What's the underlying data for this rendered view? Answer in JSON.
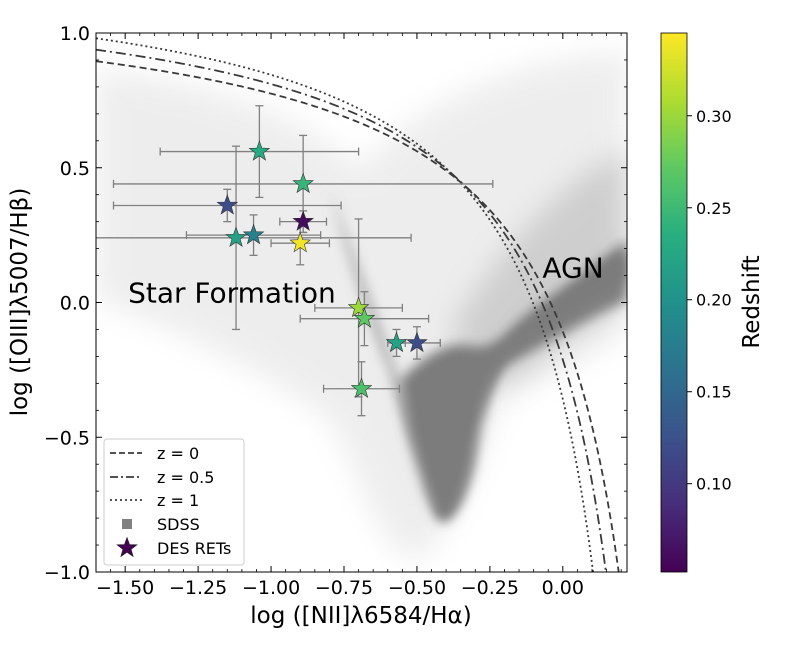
{
  "chart_data": {
    "type": "scatter",
    "xlabel": "log ([NII]λ6584/Hα)",
    "ylabel": "log ([OIII]λ5007/Hβ)",
    "xlim": [
      -1.6,
      0.22
    ],
    "ylim": [
      -1.0,
      1.0
    ],
    "x_ticks": [
      -1.5,
      -1.25,
      -1.0,
      -0.75,
      -0.5,
      -0.25,
      0.0
    ],
    "x_tick_labels": [
      "−1.50",
      "−1.25",
      "−1.00",
      "−0.75",
      "−0.50",
      "−0.25",
      "0.00"
    ],
    "y_ticks": [
      -1.0,
      -0.5,
      0.0,
      0.5,
      1.0
    ],
    "y_tick_labels": [
      "−1.0",
      "−0.5",
      "0.0",
      "0.5",
      "1.0"
    ],
    "annotations": [
      {
        "text": "Star Formation",
        "x": -1.49,
        "y": 0.0
      },
      {
        "text": "AGN",
        "x": -0.07,
        "y": 0.13
      }
    ],
    "curves": [
      {
        "name": "$z = 0$",
        "style": "dashed",
        "color": "#3a3a3a",
        "asymptote": 0.47,
        "coef": 0.61,
        "offset": 1.19
      },
      {
        "name": "$z = 0.5$",
        "style": "dashdot",
        "color": "#3a3a3a",
        "asymptote": 0.42,
        "coef": 0.61,
        "offset": 1.24
      },
      {
        "name": "$z = 1$",
        "style": "dotted",
        "color": "#3a3a3a",
        "asymptote": 0.37,
        "coef": 0.61,
        "offset": 1.29
      }
    ],
    "series": [
      {
        "name": "SDSS",
        "marker": "square",
        "color": "#808080"
      },
      {
        "name": "DES RETs",
        "marker": "star",
        "color": "#440154"
      }
    ],
    "points": [
      {
        "x": -1.04,
        "y": 0.56,
        "xerr": 0.34,
        "yerr": 0.17,
        "z": 0.23
      },
      {
        "x": -0.89,
        "y": 0.44,
        "xerr": 0.65,
        "yerr": 0.18,
        "z": 0.245
      },
      {
        "x": -1.15,
        "y": 0.36,
        "xerr": 0.39,
        "yerr": 0.06,
        "z": 0.12
      },
      {
        "x": -0.89,
        "y": 0.3,
        "xerr": 0.08,
        "yerr": 0.04,
        "z": 0.06
      },
      {
        "x": -1.12,
        "y": 0.24,
        "xerr": 0.6,
        "yerr": 0.34,
        "z": 0.22
      },
      {
        "x": -1.06,
        "y": 0.25,
        "xerr": 0.23,
        "yerr": 0.075,
        "z": 0.18
      },
      {
        "x": -0.9,
        "y": 0.22,
        "xerr": 0.1,
        "yerr": 0.08,
        "z": 0.34
      },
      {
        "x": -0.7,
        "y": -0.02,
        "xerr": 0.15,
        "yerr": 0.33,
        "z": 0.3
      },
      {
        "x": -0.68,
        "y": -0.06,
        "xerr": 0.22,
        "yerr": 0.1,
        "z": 0.27
      },
      {
        "x": -0.57,
        "y": -0.15,
        "xerr": 0.03,
        "yerr": 0.05,
        "z": 0.22
      },
      {
        "x": -0.5,
        "y": -0.15,
        "xerr": 0.08,
        "yerr": 0.06,
        "z": 0.12
      },
      {
        "x": -0.69,
        "y": -0.32,
        "xerr": 0.13,
        "yerr": 0.1,
        "z": 0.26
      }
    ],
    "colorbar": {
      "label": "Redshift",
      "colormap": "viridis",
      "range": [
        0.052,
        0.345
      ],
      "ticks": [
        0.1,
        0.15,
        0.2,
        0.25,
        0.3
      ],
      "tick_labels": [
        "0.10",
        "0.15",
        "0.20",
        "0.25",
        "0.30"
      ]
    },
    "legend": {
      "placement": "lower-left",
      "entries": [
        "$z = 0$",
        "$z = 0.5$",
        "$z = 1$",
        "SDSS",
        "DES RETs"
      ]
    }
  }
}
